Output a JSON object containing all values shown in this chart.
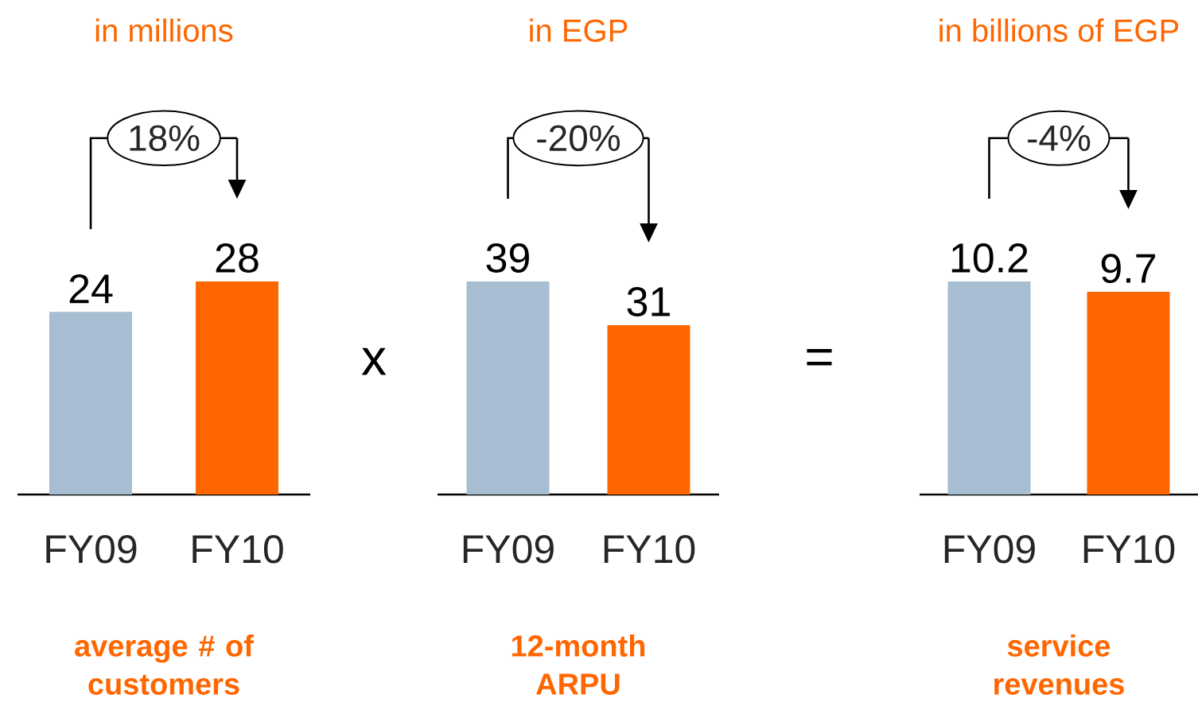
{
  "chart_data": [
    {
      "type": "bar",
      "subtitle": "in millions",
      "xlabel": "average # of customers",
      "categories": [
        "FY09",
        "FY10"
      ],
      "values": [
        24,
        28
      ],
      "colors": [
        "#a7bdd1",
        "#ff6600"
      ],
      "data_labels": true,
      "annotations": [
        "18%",
        "x"
      ]
    },
    {
      "type": "bar",
      "subtitle": "in EGP",
      "xlabel": "12-month ARPU",
      "categories": [
        "FY09",
        "FY10"
      ],
      "values": [
        39,
        31
      ],
      "colors": [
        "#a7bdd1",
        "#ff6600"
      ],
      "data_labels": true,
      "annotations": [
        "-20%",
        "="
      ]
    },
    {
      "type": "bar",
      "subtitle": "in billions of EGP",
      "xlabel": "service revenues",
      "categories": [
        "FY09",
        "FY10"
      ],
      "values": [
        10.2,
        9.7
      ],
      "colors": [
        "#a7bdd1",
        "#ff6600"
      ],
      "data_labels": true,
      "annotations": [
        "-4%"
      ]
    }
  ]
}
